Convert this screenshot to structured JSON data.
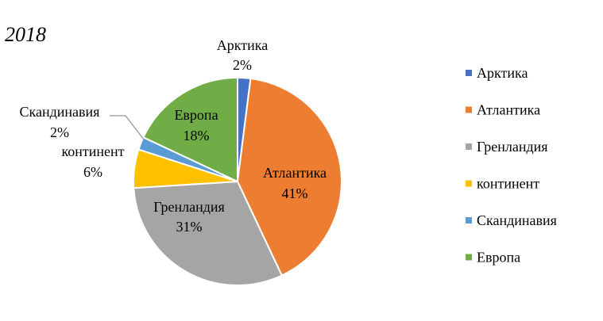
{
  "chart_data": {
    "type": "pie",
    "title": "2018",
    "categories": [
      "Арктика",
      "Атлантика",
      "Гренландия",
      "континент",
      "Скандинавия",
      "Европа"
    ],
    "values": [
      2,
      41,
      31,
      6,
      2,
      18
    ],
    "value_labels": [
      "2%",
      "41%",
      "31%",
      "6%",
      "2%",
      "18%"
    ],
    "colors": [
      "#4472C4",
      "#ED7D31",
      "#A5A5A5",
      "#FFC000",
      "#5B9BD5",
      "#70AD47"
    ],
    "legend_position": "right"
  }
}
